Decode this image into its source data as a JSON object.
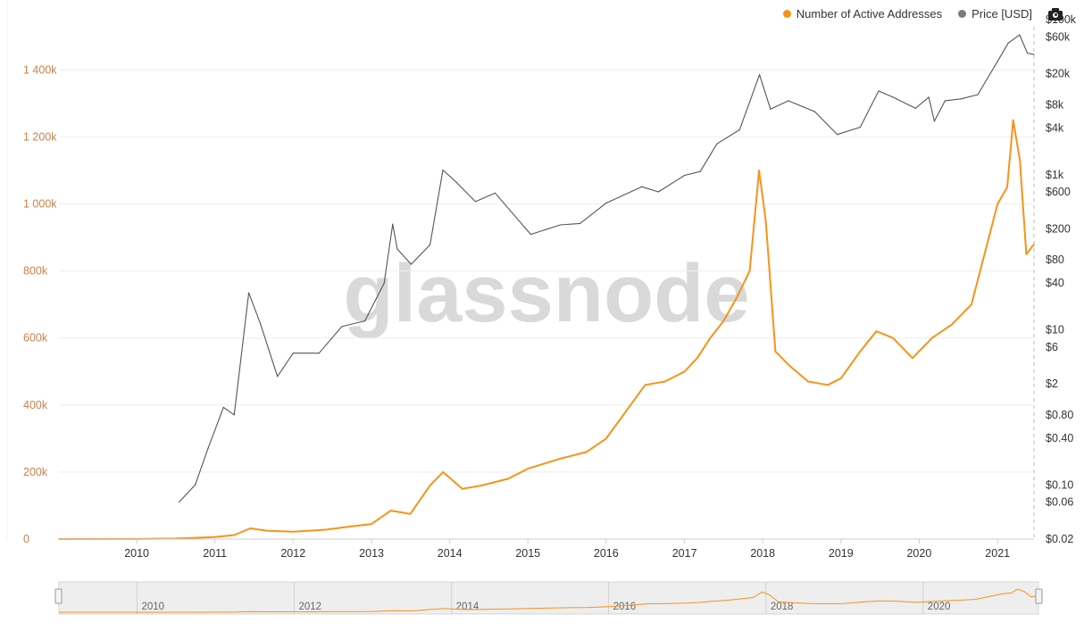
{
  "legend": {
    "series1_label": "Number of Active Addresses",
    "series2_label": "Price [USD]"
  },
  "toolbar": {
    "camera_icon": "camera-icon"
  },
  "watermark": "glassnode",
  "colors": {
    "active": "#f7931a",
    "price": "#555555",
    "left_axis_text": "#c8824a",
    "grid": "#eeeeee"
  },
  "chart_data": {
    "type": "line",
    "x_range": [
      "2009-01-03",
      "2021-06-20"
    ],
    "left_axis": {
      "ylim": [
        0,
        1550000
      ],
      "ticks": [
        0,
        200000,
        400000,
        600000,
        800000,
        1000000,
        1200000,
        1400000
      ],
      "tick_labels": [
        "0",
        "200k",
        "400k",
        "600k",
        "800k",
        "1 000k",
        "1 200k",
        "1 400k"
      ]
    },
    "right_axis": {
      "scale": "log",
      "ylim": [
        0.02,
        100000
      ],
      "ticks": [
        0.02,
        0.06,
        0.1,
        0.4,
        0.8,
        2,
        6,
        10,
        40,
        80,
        200,
        600,
        1000,
        4000,
        8000,
        20000,
        60000,
        100000
      ],
      "tick_labels": [
        "$0.02",
        "$0.06",
        "$0.10",
        "$0.40",
        "$0.80",
        "$2",
        "$6",
        "$10",
        "$40",
        "$80",
        "$200",
        "$600",
        "$1k",
        "$4k",
        "$8k",
        "$20k",
        "$60k",
        "$100k"
      ]
    },
    "x_ticks": [
      "2010-01-01",
      "2011-01-01",
      "2012-01-01",
      "2013-01-01",
      "2014-01-01",
      "2015-01-01",
      "2016-01-01",
      "2017-01-01",
      "2018-01-01",
      "2019-01-01",
      "2020-01-01",
      "2021-01-01"
    ],
    "x_tick_labels": [
      "2010",
      "2011",
      "2012",
      "2013",
      "2014",
      "2015",
      "2016",
      "2017",
      "2018",
      "2019",
      "2020",
      "2021"
    ],
    "navigator_tick_labels": [
      "2010",
      "2012",
      "2014",
      "2016",
      "2018",
      "2020"
    ],
    "series": [
      {
        "name": "Number of Active Addresses",
        "axis": "left",
        "x": [
          "2009-01-03",
          "2010-01-01",
          "2010-07-01",
          "2011-01-01",
          "2011-04-01",
          "2011-06-15",
          "2011-09-01",
          "2012-01-01",
          "2012-06-01",
          "2012-10-01",
          "2013-01-01",
          "2013-04-01",
          "2013-07-01",
          "2013-10-01",
          "2013-12-01",
          "2014-03-01",
          "2014-06-01",
          "2014-10-01",
          "2015-01-01",
          "2015-06-01",
          "2015-10-01",
          "2016-01-01",
          "2016-04-01",
          "2016-07-01",
          "2016-10-01",
          "2017-01-01",
          "2017-03-01",
          "2017-05-01",
          "2017-07-01",
          "2017-09-01",
          "2017-11-01",
          "2017-12-15",
          "2018-01-15",
          "2018-03-01",
          "2018-05-01",
          "2018-08-01",
          "2018-11-01",
          "2019-01-01",
          "2019-04-01",
          "2019-06-15",
          "2019-09-01",
          "2019-12-01",
          "2020-03-01",
          "2020-06-01",
          "2020-09-01",
          "2020-11-01",
          "2021-01-01",
          "2021-02-15",
          "2021-03-15",
          "2021-04-15",
          "2021-05-15",
          "2021-06-20"
        ],
        "values": [
          0,
          300,
          1500,
          6000,
          12000,
          32000,
          25000,
          22000,
          28000,
          38000,
          45000,
          85000,
          75000,
          160000,
          200000,
          150000,
          160000,
          180000,
          210000,
          240000,
          260000,
          300000,
          380000,
          460000,
          470000,
          500000,
          540000,
          600000,
          650000,
          720000,
          800000,
          1100000,
          950000,
          560000,
          520000,
          470000,
          460000,
          480000,
          560000,
          620000,
          600000,
          540000,
          600000,
          640000,
          700000,
          850000,
          1000000,
          1050000,
          1250000,
          1130000,
          850000,
          880000
        ]
      },
      {
        "name": "Price [USD]",
        "axis": "right",
        "x": [
          "2010-07-18",
          "2010-10-01",
          "2010-12-01",
          "2011-02-10",
          "2011-04-01",
          "2011-06-08",
          "2011-08-01",
          "2011-10-20",
          "2012-01-01",
          "2012-05-01",
          "2012-08-15",
          "2012-12-01",
          "2013-03-01",
          "2013-04-10",
          "2013-05-01",
          "2013-07-05",
          "2013-10-01",
          "2013-11-30",
          "2014-02-01",
          "2014-05-01",
          "2014-08-01",
          "2015-01-14",
          "2015-06-01",
          "2015-09-01",
          "2016-01-01",
          "2016-06-15",
          "2016-09-01",
          "2017-01-01",
          "2017-03-15",
          "2017-06-01",
          "2017-09-15",
          "2017-12-17",
          "2018-02-06",
          "2018-05-01",
          "2018-09-01",
          "2018-12-15",
          "2019-04-01",
          "2019-06-26",
          "2019-09-01",
          "2019-12-15",
          "2020-02-15",
          "2020-03-12",
          "2020-05-01",
          "2020-07-15",
          "2020-10-01",
          "2021-01-01",
          "2021-02-20",
          "2021-04-14",
          "2021-05-20",
          "2021-06-20"
        ],
        "values": [
          0.06,
          0.1,
          0.3,
          1.0,
          0.8,
          30,
          12,
          2.5,
          5,
          5,
          11,
          13,
          40,
          230,
          110,
          70,
          125,
          1150,
          800,
          450,
          580,
          170,
          225,
          235,
          430,
          700,
          600,
          980,
          1100,
          2500,
          3800,
          19500,
          7000,
          9000,
          6500,
          3300,
          4100,
          12000,
          10000,
          7200,
          10000,
          4900,
          9000,
          9500,
          10800,
          29000,
          50000,
          63500,
          37000,
          35500
        ]
      }
    ]
  }
}
